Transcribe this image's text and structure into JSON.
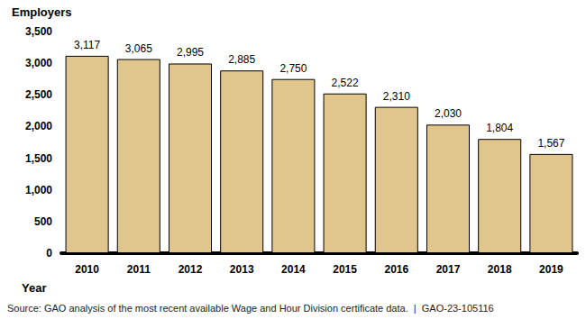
{
  "chart_data": {
    "type": "bar",
    "ylabel": "Employers",
    "xlabel": "Year",
    "source": "Source: GAO analysis of the most recent available Wage and Hour Division certificate data.  |  GAO-23-105116",
    "categories": [
      "2010",
      "2011",
      "2012",
      "2013",
      "2014",
      "2015",
      "2016",
      "2017",
      "2018",
      "2019"
    ],
    "values": [
      3117,
      3065,
      2995,
      2885,
      2750,
      2522,
      2310,
      2030,
      1804,
      1567
    ],
    "value_labels": [
      "3,117",
      "3,065",
      "2,995",
      "2,885",
      "2,750",
      "2,522",
      "2,310",
      "2,030",
      "1,804",
      "1,567"
    ],
    "color": "#e0c68c",
    "data_labels": true,
    "grid": false,
    "ylim": [
      0,
      3500
    ],
    "yticks": [
      0,
      500,
      {
        "value": 1000,
        "label": "1,000"
      },
      {
        "value": 1500,
        "label": "1,500"
      },
      {
        "value": 2000,
        "label": "2,000"
      },
      {
        "value": 2500,
        "label": "2,500"
      },
      {
        "value": 3000,
        "label": "3,000"
      },
      {
        "value": 3500,
        "label": "3,500"
      }
    ]
  }
}
